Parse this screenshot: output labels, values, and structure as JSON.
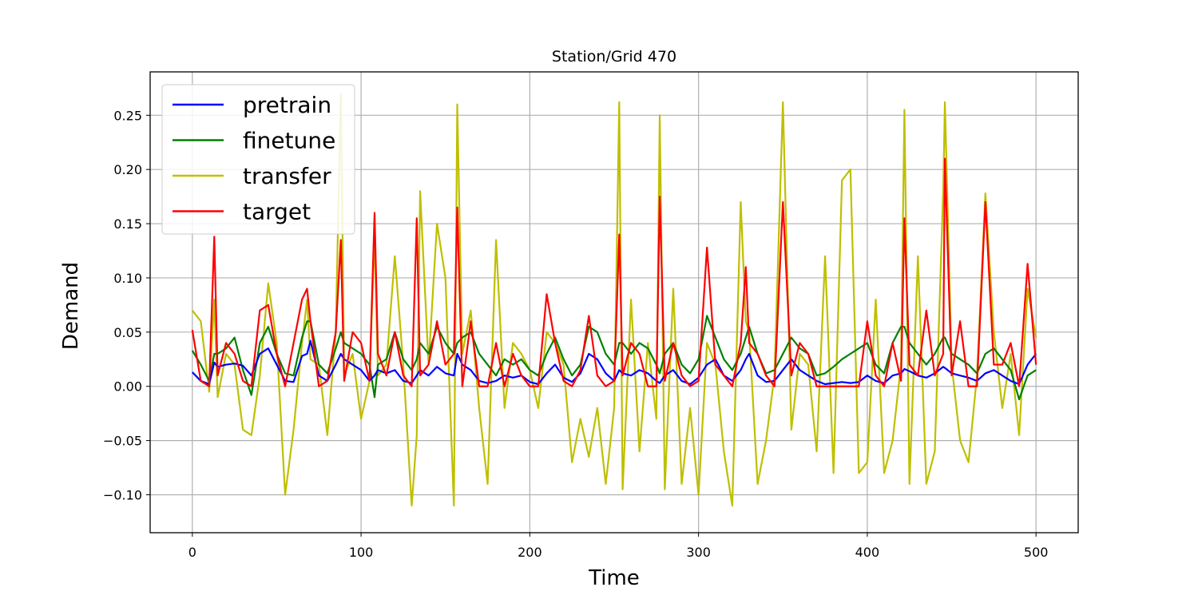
{
  "chart_data": {
    "type": "line",
    "title": "Station/Grid 470",
    "xlabel": "Time",
    "ylabel": "Demand",
    "xlim": [
      -25,
      525
    ],
    "ylim": [
      -0.135,
      0.29
    ],
    "xticks": [
      0,
      100,
      200,
      300,
      400,
      500
    ],
    "xtick_labels": [
      "0",
      "100",
      "200",
      "300",
      "400",
      "500"
    ],
    "yticks": [
      -0.1,
      -0.05,
      0.0,
      0.05,
      0.1,
      0.15,
      0.2,
      0.25
    ],
    "ytick_labels": [
      "−0.10",
      "−0.05",
      "0.00",
      "0.05",
      "0.10",
      "0.15",
      "0.20",
      "0.25"
    ],
    "grid": true,
    "legend_position": "upper-left",
    "x": [
      0,
      5,
      10,
      13,
      15,
      20,
      25,
      30,
      35,
      40,
      45,
      50,
      55,
      60,
      65,
      68,
      70,
      75,
      80,
      85,
      88,
      90,
      95,
      100,
      105,
      108,
      110,
      115,
      120,
      125,
      130,
      133,
      135,
      140,
      145,
      150,
      155,
      157,
      160,
      165,
      170,
      175,
      180,
      185,
      190,
      195,
      200,
      205,
      210,
      215,
      220,
      225,
      230,
      235,
      240,
      245,
      250,
      253,
      255,
      260,
      265,
      270,
      275,
      277,
      280,
      285,
      290,
      295,
      300,
      305,
      310,
      315,
      320,
      325,
      328,
      330,
      335,
      340,
      345,
      350,
      355,
      360,
      365,
      370,
      375,
      380,
      385,
      390,
      395,
      400,
      405,
      410,
      415,
      420,
      422,
      425,
      430,
      435,
      440,
      445,
      446,
      450,
      455,
      460,
      465,
      470,
      475,
      480,
      485,
      490,
      495,
      500
    ],
    "series": [
      {
        "name": "pretrain",
        "color": "#0000ff",
        "values": [
          0.013,
          0.005,
          0.002,
          0.022,
          0.018,
          0.02,
          0.021,
          0.019,
          0.01,
          0.03,
          0.035,
          0.02,
          0.005,
          0.004,
          0.028,
          0.03,
          0.042,
          0.01,
          0.005,
          0.02,
          0.03,
          0.025,
          0.02,
          0.015,
          0.005,
          0.01,
          0.015,
          0.012,
          0.015,
          0.005,
          0.003,
          0.01,
          0.015,
          0.01,
          0.018,
          0.012,
          0.01,
          0.03,
          0.02,
          0.015,
          0.005,
          0.003,
          0.005,
          0.01,
          0.008,
          0.01,
          0.004,
          0.002,
          0.012,
          0.02,
          0.008,
          0.004,
          0.012,
          0.03,
          0.025,
          0.012,
          0.005,
          0.015,
          0.012,
          0.01,
          0.015,
          0.012,
          0.005,
          0.003,
          0.01,
          0.015,
          0.005,
          0.002,
          0.008,
          0.02,
          0.025,
          0.01,
          0.005,
          0.015,
          0.025,
          0.03,
          0.01,
          0.004,
          0.005,
          0.015,
          0.025,
          0.015,
          0.01,
          0.005,
          0.002,
          0.003,
          0.004,
          0.003,
          0.004,
          0.01,
          0.005,
          0.003,
          0.01,
          0.012,
          0.016,
          0.014,
          0.01,
          0.008,
          0.012,
          0.018,
          0.017,
          0.012,
          0.01,
          0.008,
          0.005,
          0.012,
          0.015,
          0.01,
          0.005,
          0.002,
          0.02,
          0.03
        ]
      },
      {
        "name": "finetune",
        "color": "#008000",
        "values": [
          0.033,
          0.02,
          0.005,
          0.03,
          0.03,
          0.035,
          0.045,
          0.015,
          -0.008,
          0.04,
          0.055,
          0.03,
          0.012,
          0.01,
          0.045,
          0.06,
          0.06,
          0.02,
          0.012,
          0.035,
          0.05,
          0.04,
          0.035,
          0.03,
          0.02,
          -0.01,
          0.02,
          0.025,
          0.05,
          0.025,
          0.015,
          0.025,
          0.04,
          0.03,
          0.055,
          0.04,
          0.03,
          0.04,
          0.045,
          0.05,
          0.03,
          0.02,
          0.01,
          0.025,
          0.02,
          0.025,
          0.015,
          0.01,
          0.03,
          0.045,
          0.025,
          0.01,
          0.02,
          0.055,
          0.05,
          0.03,
          0.02,
          0.04,
          0.04,
          0.03,
          0.04,
          0.035,
          0.02,
          0.012,
          0.03,
          0.04,
          0.02,
          0.012,
          0.025,
          0.065,
          0.045,
          0.025,
          0.015,
          0.03,
          0.045,
          0.055,
          0.03,
          0.012,
          0.015,
          0.03,
          0.045,
          0.035,
          0.03,
          0.01,
          0.012,
          0.018,
          0.025,
          0.03,
          0.035,
          0.04,
          0.02,
          0.012,
          0.04,
          0.055,
          0.055,
          0.04,
          0.03,
          0.02,
          0.03,
          0.045,
          0.045,
          0.03,
          0.025,
          0.02,
          0.012,
          0.03,
          0.035,
          0.025,
          0.015,
          -0.012,
          0.01,
          0.015
        ]
      },
      {
        "name": "transfer",
        "color": "#bfbf00",
        "values": [
          0.07,
          0.06,
          -0.005,
          0.08,
          -0.01,
          0.03,
          0.02,
          -0.04,
          -0.045,
          0.01,
          0.095,
          0.04,
          -0.1,
          -0.04,
          0.04,
          0.08,
          0.025,
          0.02,
          -0.045,
          0.05,
          0.27,
          0.01,
          0.03,
          -0.03,
          0.005,
          0.14,
          0.01,
          0.02,
          0.12,
          0.02,
          -0.11,
          -0.045,
          0.18,
          0.02,
          0.15,
          0.1,
          -0.11,
          0.26,
          0.03,
          0.07,
          -0.02,
          -0.09,
          0.135,
          -0.02,
          0.04,
          0.03,
          0.015,
          -0.02,
          0.05,
          0.04,
          0.02,
          -0.07,
          -0.03,
          -0.065,
          -0.02,
          -0.09,
          -0.02,
          0.262,
          -0.095,
          0.08,
          -0.06,
          0.04,
          -0.03,
          0.25,
          -0.095,
          0.09,
          -0.09,
          -0.02,
          -0.1,
          0.04,
          0.02,
          -0.06,
          -0.11,
          0.17,
          0.06,
          0.05,
          -0.09,
          -0.05,
          0.01,
          0.262,
          -0.04,
          0.03,
          0.02,
          -0.06,
          0.12,
          -0.08,
          0.19,
          0.2,
          -0.08,
          -0.07,
          0.08,
          -0.08,
          -0.05,
          0.02,
          0.255,
          -0.09,
          0.12,
          -0.09,
          -0.06,
          0.18,
          0.262,
          0.02,
          -0.05,
          -0.07,
          0.01,
          0.178,
          0.05,
          -0.02,
          0.03,
          -0.045,
          0.09,
          0.045
        ]
      },
      {
        "name": "target",
        "color": "#ff0000",
        "values": [
          0.052,
          0.005,
          0.0,
          0.138,
          0.01,
          0.04,
          0.03,
          0.005,
          0.0,
          0.07,
          0.075,
          0.03,
          0.0,
          0.04,
          0.08,
          0.09,
          0.06,
          0.0,
          0.005,
          0.05,
          0.135,
          0.005,
          0.05,
          0.04,
          0.005,
          0.16,
          0.03,
          0.01,
          0.05,
          0.01,
          0.0,
          0.155,
          0.01,
          0.02,
          0.06,
          0.02,
          0.03,
          0.165,
          0.0,
          0.06,
          0.0,
          0.0,
          0.04,
          0.0,
          0.03,
          0.01,
          0.0,
          0.0,
          0.085,
          0.04,
          0.005,
          0.0,
          0.015,
          0.065,
          0.01,
          0.0,
          0.005,
          0.14,
          0.01,
          0.04,
          0.03,
          0.0,
          0.0,
          0.175,
          0.005,
          0.04,
          0.01,
          0.0,
          0.005,
          0.128,
          0.02,
          0.01,
          0.0,
          0.04,
          0.11,
          0.04,
          0.03,
          0.01,
          0.0,
          0.17,
          0.01,
          0.04,
          0.03,
          0.0,
          0.0,
          0.0,
          0.0,
          0.0,
          0.0,
          0.06,
          0.01,
          0.0,
          0.04,
          0.005,
          0.155,
          0.02,
          0.01,
          0.07,
          0.01,
          0.03,
          0.21,
          0.01,
          0.06,
          0.0,
          0.0,
          0.17,
          0.02,
          0.02,
          0.04,
          0.0,
          0.113,
          0.02
        ]
      }
    ]
  }
}
